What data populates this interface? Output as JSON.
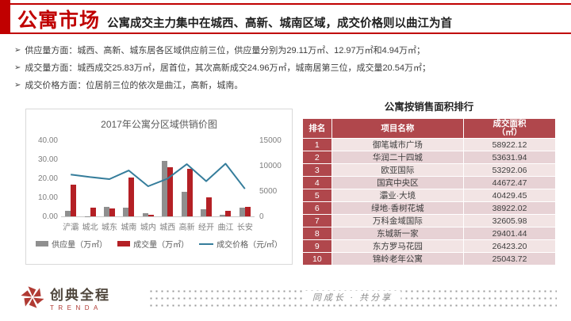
{
  "header": {
    "section_title": "公寓市场",
    "subtitle": "公寓成交主力集中在城西、高新、城南区域，成交价格则以曲江为首"
  },
  "bullet_char": "➢",
  "bullets": [
    {
      "text": "供应量方面：城西、高新、城东居各区域供应前三位，供应量分别为29.11万㎡、12.97万㎡和4.94万㎡；"
    },
    {
      "text": "成交量方面：城西成交25.83万㎡，居首位，其次高新成交24.96万㎡，城南居第三位，成交量20.54万㎡；"
    },
    {
      "text": "成交价格方面：位居前三位的依次是曲江，高新，城南。"
    }
  ],
  "chart_data": {
    "type": "bar",
    "title": "2017年公寓分区域供销价图",
    "categories": [
      "浐灞",
      "城北",
      "城东",
      "城南",
      "城内",
      "城西",
      "高新",
      "经开",
      "曲江",
      "长安"
    ],
    "series": [
      {
        "name": "供应量（万㎡）",
        "type": "bar",
        "axis": "left",
        "color": "#8f8f8f",
        "values": [
          3.0,
          0.2,
          4.94,
          4.7,
          1.6,
          29.11,
          12.97,
          3.9,
          0.7,
          4.6
        ]
      },
      {
        "name": "成交量（万㎡）",
        "type": "bar",
        "axis": "left",
        "color": "#b42025",
        "values": [
          16.5,
          4.7,
          4.3,
          20.54,
          0.8,
          25.83,
          24.96,
          10.0,
          3.0,
          5.0
        ]
      },
      {
        "name": "成交价格（元/㎡）",
        "type": "line",
        "axis": "right",
        "color": "#357d9b",
        "values": [
          8400,
          7900,
          7500,
          9200,
          6100,
          7600,
          10450,
          7100,
          10550,
          5600
        ]
      }
    ],
    "left_axis": {
      "min": 0,
      "max": 40,
      "ticks": [
        "0.00",
        "10.00",
        "20.00",
        "30.00",
        "40.00"
      ]
    },
    "right_axis": {
      "min": 0,
      "max": 15000,
      "ticks": [
        "0",
        "5000",
        "10000",
        "15000"
      ]
    },
    "legend_position": "bottom",
    "grid": false
  },
  "table": {
    "title": "公寓按销售面积排行",
    "headers": {
      "rank": "排名",
      "name": "项目名称",
      "area_line1": "成交面积",
      "area_line2": "（㎡）"
    },
    "rows": [
      {
        "rank": "1",
        "name": "御笔城市广场",
        "area": "58922.12"
      },
      {
        "rank": "2",
        "name": "华润二十四城",
        "area": "53631.94"
      },
      {
        "rank": "3",
        "name": "欧亚国际",
        "area": "53292.06"
      },
      {
        "rank": "4",
        "name": "国宾中央区",
        "area": "44672.47"
      },
      {
        "rank": "5",
        "name": "灞业·大境",
        "area": "40429.45"
      },
      {
        "rank": "6",
        "name": "绿地·香树花城",
        "area": "38922.02"
      },
      {
        "rank": "7",
        "name": "万科金域国际",
        "area": "32605.98"
      },
      {
        "rank": "8",
        "name": "东城新一家",
        "area": "29401.44"
      },
      {
        "rank": "9",
        "name": "东方罗马花园",
        "area": "26423.20"
      },
      {
        "rank": "10",
        "name": "锦岭老年公寓",
        "area": "25043.72"
      }
    ]
  },
  "footer": {
    "logo_text": "创典全程",
    "logo_sub": "TRENDA",
    "slogan": "同成长 · 共分享"
  },
  "colors": {
    "accent_red": "#c00000",
    "table_header_red": "#b0474c",
    "supply_bar": "#8f8f8f",
    "sales_bar": "#b42025",
    "price_line": "#357d9b"
  }
}
